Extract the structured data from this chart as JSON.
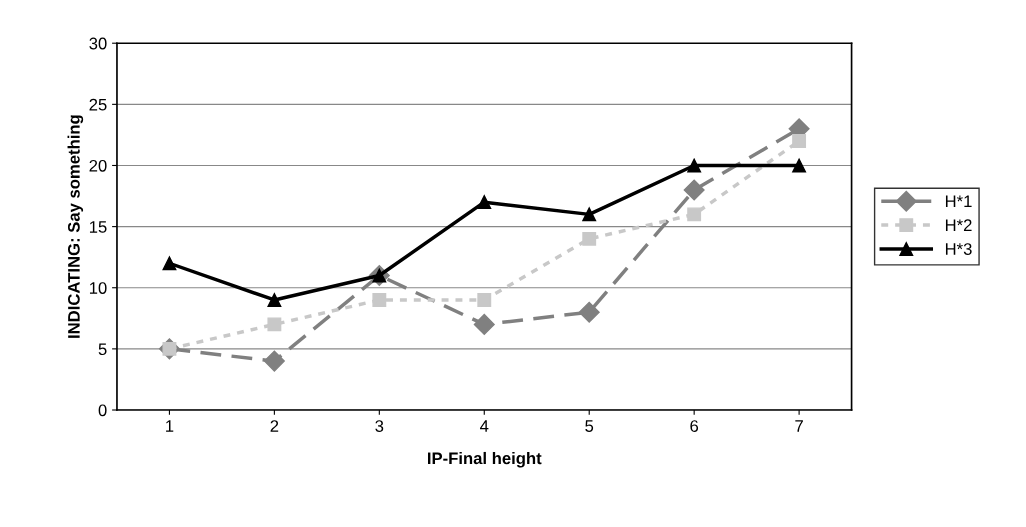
{
  "chart_data": {
    "type": "line",
    "xlabel": "IP-Final height",
    "ylabel": "INDICATING: Say something",
    "categories": [
      "1",
      "2",
      "3",
      "4",
      "5",
      "6",
      "7"
    ],
    "series": [
      {
        "name": "H*1",
        "color": "#808080",
        "values": [
          5,
          4,
          11,
          7,
          8,
          18,
          23
        ],
        "marker": "diamond",
        "line_style": "dashed"
      },
      {
        "name": "H*2",
        "color": "#c8c8c8",
        "values": [
          5,
          7,
          9,
          9,
          14,
          16,
          22
        ],
        "marker": "square",
        "line_style": "dotted"
      },
      {
        "name": "H*3",
        "color": "#000000",
        "values": [
          12,
          9,
          11,
          17,
          16,
          20,
          20
        ],
        "marker": "triangle",
        "line_style": "solid"
      }
    ],
    "ylim": [
      0,
      30
    ],
    "yticks": [
      0,
      5,
      10,
      15,
      20,
      25,
      30
    ],
    "grid": "y",
    "legend": "right"
  }
}
